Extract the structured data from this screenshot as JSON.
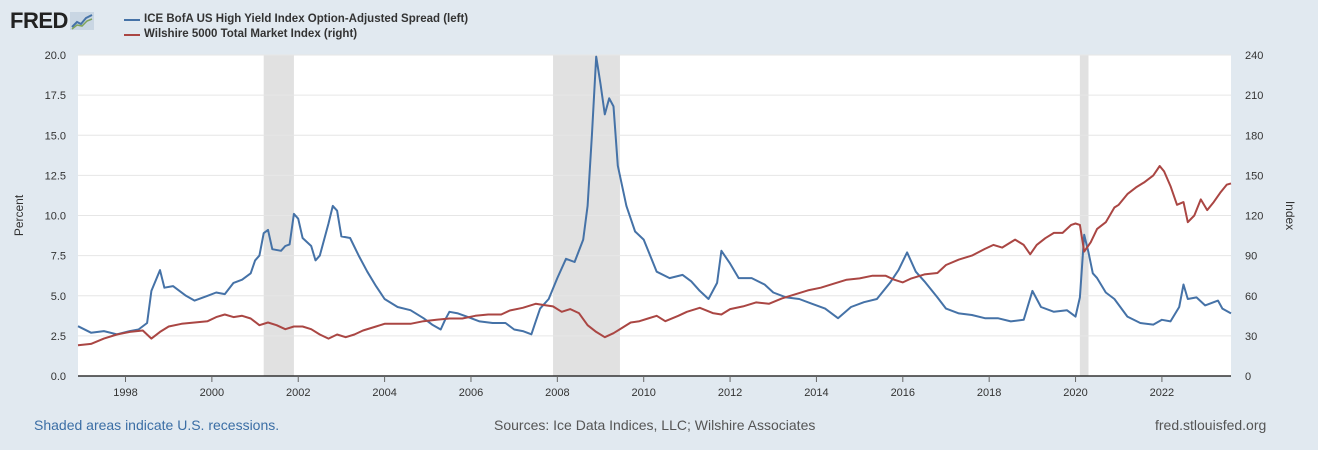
{
  "logo": {
    "text": "FRED"
  },
  "footer": {
    "left": "Shaded areas indicate U.S. recessions.",
    "middle": "Sources: Ice Data Indices, LLC; Wilshire Associates",
    "right": "fred.stlouisfed.org"
  },
  "colors": {
    "spread": "#4572a7",
    "wilshire": "#aa4643",
    "recession": "#e1e1e1",
    "background": "#e1e9f0"
  },
  "chart_data": {
    "type": "line",
    "title": "",
    "legend_position": "top-left",
    "grid": true,
    "xlim": [
      1996.9,
      2023.6
    ],
    "x_ticks": [
      1998,
      2000,
      2002,
      2004,
      2006,
      2008,
      2010,
      2012,
      2014,
      2016,
      2018,
      2020,
      2022
    ],
    "x_tick_labels": [
      "1998",
      "2000",
      "2002",
      "2004",
      "2006",
      "2008",
      "2010",
      "2012",
      "2014",
      "2016",
      "2018",
      "2020",
      "2022"
    ],
    "left_axis": {
      "label": "Percent",
      "ylim": [
        0,
        20
      ],
      "ticks": [
        0,
        2.5,
        5,
        7.5,
        10,
        12.5,
        15,
        17.5,
        20
      ],
      "tick_labels": [
        "0.0",
        "2.5",
        "5.0",
        "7.5",
        "10.0",
        "12.5",
        "15.0",
        "17.5",
        "20.0"
      ]
    },
    "right_axis": {
      "label": "Index",
      "ylim": [
        0,
        240
      ],
      "ticks": [
        0,
        30,
        60,
        90,
        120,
        150,
        180,
        210,
        240
      ],
      "tick_labels": [
        "0",
        "30",
        "60",
        "90",
        "120",
        "150",
        "180",
        "210",
        "240"
      ]
    },
    "recessions": [
      [
        2001.2,
        2001.9
      ],
      [
        2007.9,
        2009.45
      ],
      [
        2020.1,
        2020.3
      ]
    ],
    "series": [
      {
        "name": "ICE BofA US High Yield Index Option-Adjusted Spread (left)",
        "axis": "left",
        "color": "#4572a7",
        "points": [
          [
            1996.9,
            3.1
          ],
          [
            1997.2,
            2.7
          ],
          [
            1997.5,
            2.8
          ],
          [
            1997.8,
            2.6
          ],
          [
            1998.1,
            2.8
          ],
          [
            1998.3,
            2.9
          ],
          [
            1998.5,
            3.3
          ],
          [
            1998.6,
            5.3
          ],
          [
            1998.8,
            6.6
          ],
          [
            1998.9,
            5.5
          ],
          [
            1999.1,
            5.6
          ],
          [
            1999.4,
            5.0
          ],
          [
            1999.6,
            4.7
          ],
          [
            1999.9,
            5.0
          ],
          [
            2000.1,
            5.2
          ],
          [
            2000.3,
            5.1
          ],
          [
            2000.5,
            5.8
          ],
          [
            2000.7,
            6.0
          ],
          [
            2000.9,
            6.4
          ],
          [
            2001.0,
            7.2
          ],
          [
            2001.1,
            7.5
          ],
          [
            2001.2,
            8.9
          ],
          [
            2001.3,
            9.1
          ],
          [
            2001.4,
            7.9
          ],
          [
            2001.6,
            7.8
          ],
          [
            2001.7,
            8.1
          ],
          [
            2001.8,
            8.2
          ],
          [
            2001.9,
            10.1
          ],
          [
            2002.0,
            9.8
          ],
          [
            2002.1,
            8.6
          ],
          [
            2002.3,
            8.1
          ],
          [
            2002.4,
            7.2
          ],
          [
            2002.5,
            7.5
          ],
          [
            2002.7,
            9.5
          ],
          [
            2002.8,
            10.6
          ],
          [
            2002.9,
            10.3
          ],
          [
            2003.0,
            8.7
          ],
          [
            2003.2,
            8.6
          ],
          [
            2003.4,
            7.5
          ],
          [
            2003.6,
            6.5
          ],
          [
            2003.8,
            5.6
          ],
          [
            2004.0,
            4.8
          ],
          [
            2004.3,
            4.3
          ],
          [
            2004.6,
            4.1
          ],
          [
            2004.9,
            3.6
          ],
          [
            2005.1,
            3.2
          ],
          [
            2005.3,
            2.9
          ],
          [
            2005.4,
            3.5
          ],
          [
            2005.5,
            4.0
          ],
          [
            2005.7,
            3.9
          ],
          [
            2005.9,
            3.7
          ],
          [
            2006.2,
            3.4
          ],
          [
            2006.5,
            3.3
          ],
          [
            2006.8,
            3.3
          ],
          [
            2007.0,
            2.9
          ],
          [
            2007.2,
            2.8
          ],
          [
            2007.4,
            2.6
          ],
          [
            2007.5,
            3.4
          ],
          [
            2007.6,
            4.2
          ],
          [
            2007.8,
            4.8
          ],
          [
            2008.0,
            6.1
          ],
          [
            2008.2,
            7.3
          ],
          [
            2008.4,
            7.1
          ],
          [
            2008.6,
            8.5
          ],
          [
            2008.7,
            10.6
          ],
          [
            2008.8,
            15.0
          ],
          [
            2008.9,
            19.9
          ],
          [
            2009.0,
            18.2
          ],
          [
            2009.1,
            16.3
          ],
          [
            2009.2,
            17.3
          ],
          [
            2009.3,
            16.8
          ],
          [
            2009.4,
            13.1
          ],
          [
            2009.6,
            10.6
          ],
          [
            2009.8,
            9.0
          ],
          [
            2010.0,
            8.5
          ],
          [
            2010.3,
            6.5
          ],
          [
            2010.6,
            6.1
          ],
          [
            2010.9,
            6.3
          ],
          [
            2011.1,
            5.9
          ],
          [
            2011.3,
            5.3
          ],
          [
            2011.5,
            4.8
          ],
          [
            2011.7,
            5.8
          ],
          [
            2011.8,
            7.8
          ],
          [
            2012.0,
            7.0
          ],
          [
            2012.2,
            6.1
          ],
          [
            2012.5,
            6.1
          ],
          [
            2012.8,
            5.7
          ],
          [
            2013.0,
            5.2
          ],
          [
            2013.3,
            4.9
          ],
          [
            2013.6,
            4.8
          ],
          [
            2013.9,
            4.5
          ],
          [
            2014.2,
            4.2
          ],
          [
            2014.5,
            3.6
          ],
          [
            2014.8,
            4.3
          ],
          [
            2015.1,
            4.6
          ],
          [
            2015.4,
            4.8
          ],
          [
            2015.7,
            5.8
          ],
          [
            2015.9,
            6.6
          ],
          [
            2016.1,
            7.7
          ],
          [
            2016.3,
            6.5
          ],
          [
            2016.5,
            5.9
          ],
          [
            2016.8,
            4.9
          ],
          [
            2017.0,
            4.2
          ],
          [
            2017.3,
            3.9
          ],
          [
            2017.6,
            3.8
          ],
          [
            2017.9,
            3.6
          ],
          [
            2018.2,
            3.6
          ],
          [
            2018.5,
            3.4
          ],
          [
            2018.8,
            3.5
          ],
          [
            2019.0,
            5.3
          ],
          [
            2019.2,
            4.3
          ],
          [
            2019.5,
            4.0
          ],
          [
            2019.8,
            4.1
          ],
          [
            2020.0,
            3.7
          ],
          [
            2020.1,
            4.9
          ],
          [
            2020.2,
            8.8
          ],
          [
            2020.3,
            7.7
          ],
          [
            2020.4,
            6.4
          ],
          [
            2020.5,
            6.1
          ],
          [
            2020.7,
            5.2
          ],
          [
            2020.9,
            4.8
          ],
          [
            2021.2,
            3.7
          ],
          [
            2021.5,
            3.3
          ],
          [
            2021.8,
            3.2
          ],
          [
            2022.0,
            3.5
          ],
          [
            2022.2,
            3.4
          ],
          [
            2022.4,
            4.3
          ],
          [
            2022.5,
            5.7
          ],
          [
            2022.6,
            4.8
          ],
          [
            2022.8,
            4.9
          ],
          [
            2023.0,
            4.4
          ],
          [
            2023.2,
            4.6
          ],
          [
            2023.3,
            4.7
          ],
          [
            2023.4,
            4.2
          ],
          [
            2023.6,
            3.9
          ]
        ]
      },
      {
        "name": "Wilshire 5000 Total Market Index (right)",
        "axis": "right",
        "color": "#aa4643",
        "points": [
          [
            1996.9,
            23
          ],
          [
            1997.2,
            24
          ],
          [
            1997.5,
            28
          ],
          [
            1997.8,
            31
          ],
          [
            1998.1,
            33
          ],
          [
            1998.4,
            34
          ],
          [
            1998.6,
            28
          ],
          [
            1998.8,
            33
          ],
          [
            1999.0,
            37
          ],
          [
            1999.3,
            39
          ],
          [
            1999.6,
            40
          ],
          [
            1999.9,
            41
          ],
          [
            2000.1,
            44
          ],
          [
            2000.3,
            46
          ],
          [
            2000.5,
            44
          ],
          [
            2000.7,
            45
          ],
          [
            2000.9,
            43
          ],
          [
            2001.1,
            38
          ],
          [
            2001.3,
            40
          ],
          [
            2001.5,
            38
          ],
          [
            2001.7,
            35
          ],
          [
            2001.9,
            37
          ],
          [
            2002.1,
            37
          ],
          [
            2002.3,
            35
          ],
          [
            2002.5,
            31
          ],
          [
            2002.7,
            28
          ],
          [
            2002.9,
            31
          ],
          [
            2003.1,
            29
          ],
          [
            2003.3,
            31
          ],
          [
            2003.5,
            34
          ],
          [
            2003.8,
            37
          ],
          [
            2004.0,
            39
          ],
          [
            2004.3,
            39
          ],
          [
            2004.6,
            39
          ],
          [
            2004.9,
            41
          ],
          [
            2005.2,
            42
          ],
          [
            2005.5,
            43
          ],
          [
            2005.8,
            43
          ],
          [
            2006.1,
            45
          ],
          [
            2006.4,
            46
          ],
          [
            2006.7,
            46
          ],
          [
            2006.9,
            49
          ],
          [
            2007.2,
            51
          ],
          [
            2007.5,
            54
          ],
          [
            2007.7,
            53
          ],
          [
            2007.9,
            52
          ],
          [
            2008.1,
            48
          ],
          [
            2008.3,
            50
          ],
          [
            2008.5,
            47
          ],
          [
            2008.7,
            38
          ],
          [
            2008.9,
            33
          ],
          [
            2009.1,
            29
          ],
          [
            2009.3,
            32
          ],
          [
            2009.5,
            36
          ],
          [
            2009.7,
            40
          ],
          [
            2009.9,
            41
          ],
          [
            2010.1,
            43
          ],
          [
            2010.3,
            45
          ],
          [
            2010.5,
            41
          ],
          [
            2010.8,
            45
          ],
          [
            2011.0,
            48
          ],
          [
            2011.3,
            51
          ],
          [
            2011.6,
            47
          ],
          [
            2011.8,
            46
          ],
          [
            2012.0,
            50
          ],
          [
            2012.3,
            52
          ],
          [
            2012.6,
            55
          ],
          [
            2012.9,
            54
          ],
          [
            2013.2,
            58
          ],
          [
            2013.5,
            61
          ],
          [
            2013.8,
            64
          ],
          [
            2014.1,
            66
          ],
          [
            2014.4,
            69
          ],
          [
            2014.7,
            72
          ],
          [
            2015.0,
            73
          ],
          [
            2015.3,
            75
          ],
          [
            2015.6,
            75
          ],
          [
            2015.8,
            72
          ],
          [
            2016.0,
            70
          ],
          [
            2016.2,
            73
          ],
          [
            2016.5,
            76
          ],
          [
            2016.8,
            77
          ],
          [
            2017.0,
            83
          ],
          [
            2017.3,
            87
          ],
          [
            2017.6,
            90
          ],
          [
            2017.9,
            95
          ],
          [
            2018.1,
            98
          ],
          [
            2018.3,
            96
          ],
          [
            2018.6,
            102
          ],
          [
            2018.8,
            98
          ],
          [
            2018.95,
            91
          ],
          [
            2019.1,
            98
          ],
          [
            2019.3,
            103
          ],
          [
            2019.5,
            107
          ],
          [
            2019.7,
            107
          ],
          [
            2019.9,
            113
          ],
          [
            2020.0,
            114
          ],
          [
            2020.1,
            113
          ],
          [
            2020.2,
            93
          ],
          [
            2020.35,
            100
          ],
          [
            2020.5,
            110
          ],
          [
            2020.7,
            115
          ],
          [
            2020.9,
            126
          ],
          [
            2021.0,
            128
          ],
          [
            2021.2,
            136
          ],
          [
            2021.4,
            141
          ],
          [
            2021.6,
            145
          ],
          [
            2021.8,
            150
          ],
          [
            2021.95,
            157
          ],
          [
            2022.05,
            153
          ],
          [
            2022.2,
            142
          ],
          [
            2022.35,
            128
          ],
          [
            2022.5,
            130
          ],
          [
            2022.6,
            115
          ],
          [
            2022.75,
            120
          ],
          [
            2022.9,
            132
          ],
          [
            2023.05,
            124
          ],
          [
            2023.2,
            130
          ],
          [
            2023.35,
            137
          ],
          [
            2023.5,
            143
          ],
          [
            2023.6,
            144
          ]
        ]
      }
    ]
  }
}
